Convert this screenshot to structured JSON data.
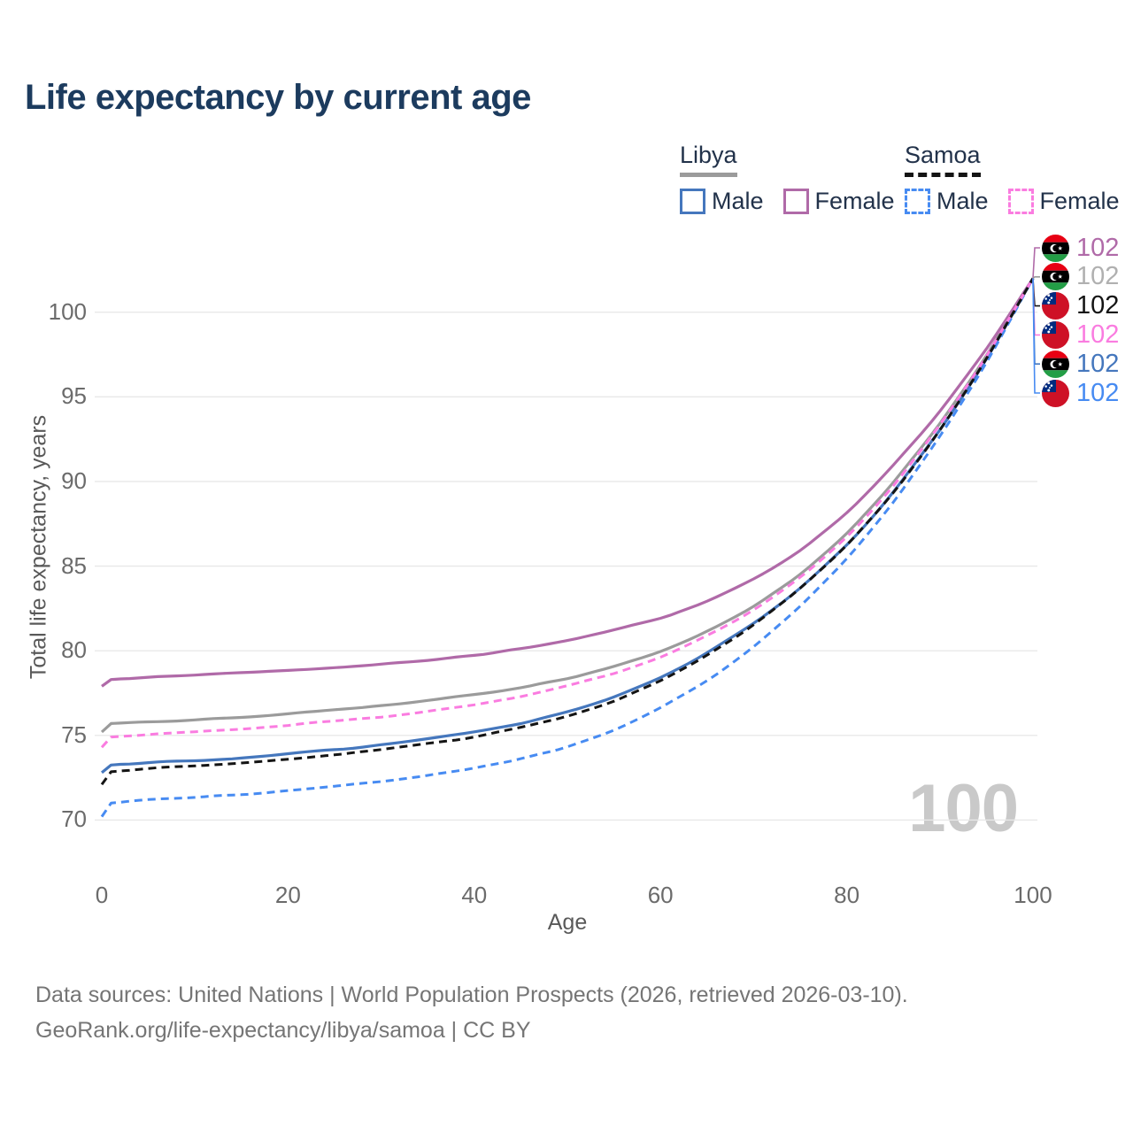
{
  "title": "Life expectancy by current age",
  "colors": {
    "title_text": "#1c3b5e",
    "libya_male": "#4577bd",
    "libya_female": "#b06aa8",
    "libya_both": "#9b9b9b",
    "samoa_male": "#478bf2",
    "samoa_female": "#fa7ce0",
    "samoa_both": "#141414",
    "gridline": "#e8e8e8",
    "watermark_text": "#c9c9c9",
    "axis_text": "#6b6b6b",
    "footer_text": "#757575"
  },
  "legend": {
    "groups": [
      {
        "label": "Libya",
        "underline_style": "solid",
        "underline_color": "#9b9b9b",
        "items": [
          {
            "label": "Male",
            "color": "#4577bd",
            "dashed": false
          },
          {
            "label": "Female",
            "color": "#b06aa8",
            "dashed": false
          }
        ]
      },
      {
        "label": "Samoa",
        "underline_style": "dashed",
        "underline_color": "#141414",
        "items": [
          {
            "label": "Male",
            "color": "#478bf2",
            "dashed": true
          },
          {
            "label": "Female",
            "color": "#fa7ce0",
            "dashed": true
          }
        ]
      }
    ]
  },
  "chart_data": {
    "type": "line",
    "title": "Life expectancy by current age",
    "xlabel": "Age",
    "ylabel": "Total life expectancy, years",
    "x_ticks": [
      0,
      20,
      40,
      60,
      80,
      100
    ],
    "y_ticks": [
      70,
      75,
      80,
      85,
      90,
      95,
      100
    ],
    "xlim": [
      0,
      100
    ],
    "ylim": [
      69,
      103
    ],
    "grid": "horizontal",
    "legend_position": "top-right",
    "watermark": "100",
    "ages": [
      0,
      1,
      5,
      10,
      15,
      20,
      25,
      30,
      35,
      40,
      45,
      50,
      55,
      60,
      65,
      70,
      75,
      80,
      85,
      90,
      95,
      100
    ],
    "series": [
      {
        "name": "Libya Female",
        "country": "Libya",
        "sex": "Female",
        "color": "#b06aa8",
        "line_style": "solid",
        "flag": "libya",
        "end_label": "102",
        "values": [
          77.9,
          78.3,
          78.45,
          78.55,
          78.7,
          78.85,
          79.0,
          79.2,
          79.45,
          79.75,
          80.1,
          80.6,
          81.2,
          81.9,
          82.9,
          84.2,
          85.9,
          88.1,
          90.9,
          94.1,
          97.8,
          102
        ]
      },
      {
        "name": "Libya Both sexes",
        "country": "Libya",
        "sex": "Both",
        "color": "#9b9b9b",
        "label_color": "#b0b0b0",
        "line_style": "solid",
        "flag": "libya",
        "end_label": "102",
        "values": [
          75.2,
          75.7,
          75.8,
          75.9,
          76.05,
          76.3,
          76.5,
          76.75,
          77.05,
          77.4,
          77.8,
          78.35,
          79.05,
          79.95,
          81.1,
          82.6,
          84.5,
          86.9,
          89.9,
          93.4,
          97.4,
          102
        ]
      },
      {
        "name": "Samoa Both sexes",
        "country": "Samoa",
        "sex": "Both",
        "color": "#141414",
        "line_style": "dashed",
        "flag": "samoa",
        "end_label": "102",
        "values": [
          72.1,
          72.85,
          73.05,
          73.2,
          73.35,
          73.6,
          73.85,
          74.15,
          74.5,
          74.9,
          75.45,
          76.1,
          77.0,
          78.2,
          79.7,
          81.5,
          83.65,
          86.2,
          89.3,
          93.0,
          97.2,
          102
        ]
      },
      {
        "name": "Samoa Female",
        "country": "Samoa",
        "sex": "Female",
        "color": "#fa7ce0",
        "line_style": "dashed",
        "flag": "samoa",
        "end_label": "102",
        "values": [
          74.3,
          74.9,
          75.05,
          75.2,
          75.35,
          75.6,
          75.85,
          76.1,
          76.4,
          76.8,
          77.3,
          77.9,
          78.65,
          79.6,
          80.85,
          82.4,
          84.3,
          86.7,
          89.7,
          93.3,
          97.35,
          102
        ]
      },
      {
        "name": "Libya Male",
        "country": "Libya",
        "sex": "Male",
        "color": "#4577bd",
        "line_style": "solid",
        "flag": "libya",
        "end_label": "102",
        "values": [
          72.8,
          73.25,
          73.4,
          73.5,
          73.65,
          73.9,
          74.15,
          74.45,
          74.8,
          75.2,
          75.7,
          76.35,
          77.25,
          78.4,
          79.85,
          81.6,
          83.7,
          86.2,
          89.3,
          93.0,
          97.2,
          102
        ]
      },
      {
        "name": "Samoa Male",
        "country": "Samoa",
        "sex": "Male",
        "color": "#478bf2",
        "line_style": "dashed",
        "flag": "samoa",
        "end_label": "102",
        "values": [
          70.2,
          71.0,
          71.2,
          71.35,
          71.5,
          71.75,
          72.0,
          72.3,
          72.65,
          73.05,
          73.6,
          74.3,
          75.3,
          76.6,
          78.2,
          80.2,
          82.6,
          85.4,
          88.7,
          92.6,
          96.95,
          102
        ]
      }
    ]
  },
  "footer": {
    "line1": "Data sources: United Nations | World Population Prospects (2026, retrieved 2026-03-10).",
    "line2": "GeoRank.org/life-expectancy/libya/samoa | CC BY"
  }
}
